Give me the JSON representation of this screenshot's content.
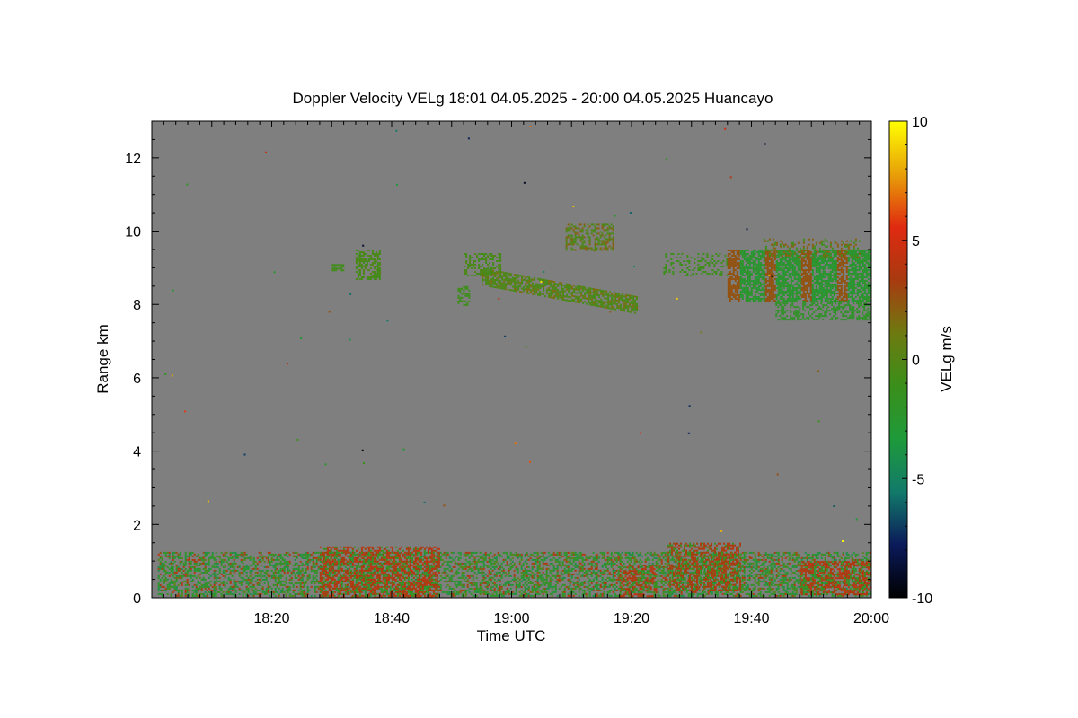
{
  "chart_data": {
    "type": "heatmap",
    "title": "Doppler Velocity VELg   18:01 04.05.2025 - 20:00 04.05.2025 Huancayo",
    "xlabel": "Time UTC",
    "ylabel": "Range km",
    "colorbar_label": "VELg m/s",
    "x_start": "18:01",
    "x_end": "20:00",
    "xlim_minutes": [
      1,
      120
    ],
    "x_ticks": [
      {
        "minute": 20,
        "label": "18:20"
      },
      {
        "minute": 40,
        "label": "18:40"
      },
      {
        "minute": 60,
        "label": "19:00"
      },
      {
        "minute": 80,
        "label": "19:20"
      },
      {
        "minute": 100,
        "label": "19:40"
      },
      {
        "minute": 120,
        "label": "20:00"
      }
    ],
    "ylim": [
      0,
      13
    ],
    "y_ticks": [
      0,
      2,
      4,
      6,
      8,
      10,
      12
    ],
    "colorbar_range": [
      -10,
      10
    ],
    "colorbar_ticks": [
      "10",
      "5",
      "0",
      "-5",
      "-10"
    ],
    "background_color": "#7f7f7f",
    "colormap": [
      "#000000",
      "#0b1a5a",
      "#127a6a",
      "#1e9a3a",
      "#3a8f1a",
      "#6e7a10",
      "#a83a10",
      "#e02a10",
      "#e8a008",
      "#ffff00"
    ],
    "echo_regions": [
      {
        "t": [
          1,
          120
        ],
        "range": [
          0.0,
          1.3
        ],
        "velocity": "mixed -2 to 3",
        "note": "boundary layer clutter"
      },
      {
        "t": [
          28,
          48
        ],
        "range": [
          0.0,
          1.4
        ],
        "velocity": 3
      },
      {
        "t": [
          78,
          84
        ],
        "range": [
          0.0,
          0.9
        ],
        "velocity": 3
      },
      {
        "t": [
          86,
          98
        ],
        "range": [
          0.2,
          1.5
        ],
        "velocity": 2.5
      },
      {
        "t": [
          108,
          120
        ],
        "range": [
          0.1,
          1.0
        ],
        "velocity": 3
      },
      {
        "t": [
          30,
          38
        ],
        "range": [
          8.8,
          9.6
        ],
        "velocity": -1
      },
      {
        "t": [
          52,
          62
        ],
        "range": [
          8.6,
          9.4
        ],
        "velocity": -1
      },
      {
        "t": [
          55,
          81
        ],
        "range": [
          7.7,
          8.6
        ],
        "velocity": -0.5,
        "note": "descending streak"
      },
      {
        "t": [
          69,
          77
        ],
        "range": [
          9.3,
          10.5
        ],
        "velocity": 0
      },
      {
        "t": [
          87,
          120
        ],
        "range": [
          7.5,
          9.8
        ],
        "velocity": -2,
        "note": "cloud band with red columns"
      }
    ]
  }
}
